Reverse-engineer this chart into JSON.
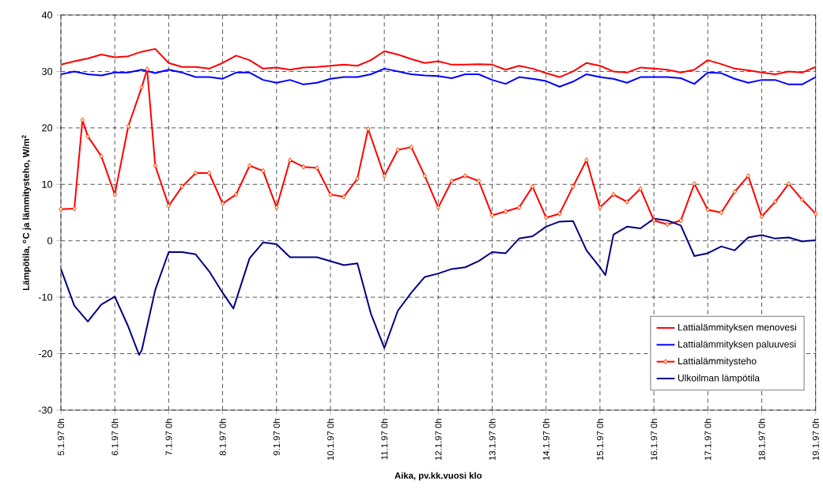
{
  "chart_data": {
    "type": "line",
    "xlabel": "Aika, pv.kk.vuosi klo",
    "ylabel": "Lämpötila, $^{o}$C ja lämmitysteho, W/m$^{2}$",
    "xlim": [
      "1997-01-05T00:00",
      "1997-01-19T00:00"
    ],
    "ylim": [
      -30,
      40
    ],
    "xticks": [
      {
        "value": "1997-01-05T00:00",
        "label": "5.1.97 0h"
      },
      {
        "value": "1997-01-06T00:00",
        "label": "6.1.97 0h"
      },
      {
        "value": "1997-01-07T00:00",
        "label": "7.1.97 0h"
      },
      {
        "value": "1997-01-08T00:00",
        "label": "8.1.97 0h"
      },
      {
        "value": "1997-01-09T00:00",
        "label": "9.1.97 0h"
      },
      {
        "value": "1997-01-10T00:00",
        "label": "10.1.97 0h"
      },
      {
        "value": "1997-01-11T00:00",
        "label": "11.1.97 0h"
      },
      {
        "value": "1997-01-12T00:00",
        "label": "12.1.97 0h"
      },
      {
        "value": "1997-01-13T00:00",
        "label": "13.1.97 0h"
      },
      {
        "value": "1997-01-14T00:00",
        "label": "14.1.97 0h"
      },
      {
        "value": "1997-01-15T00:00",
        "label": "15.1.97 0h"
      },
      {
        "value": "1997-01-16T00:00",
        "label": "16.1.97 0h"
      },
      {
        "value": "1997-01-17T00:00",
        "label": "17.1.97 0h"
      },
      {
        "value": "1997-01-18T00:00",
        "label": "18.1.97 0h"
      },
      {
        "value": "1997-01-19T00:00",
        "label": "19.1.97 0h"
      }
    ],
    "yticks": [
      -30,
      -20,
      -10,
      0,
      10,
      20,
      30,
      40
    ],
    "grid": true,
    "legend": "bottom right",
    "line_style": "solid",
    "x": [
      "1997-01-05T00:00",
      "1997-01-05T06:00",
      "1997-01-05T12:00",
      "1997-01-05T18:00",
      "1997-01-06T00:00",
      "1997-01-06T06:00",
      "1997-01-06T12:00",
      "1997-01-06T18:00",
      "1997-01-07T00:00",
      "1997-01-07T06:00",
      "1997-01-07T12:00",
      "1997-01-07T18:00",
      "1997-01-08T00:00",
      "1997-01-08T06:00",
      "1997-01-08T12:00",
      "1997-01-08T18:00",
      "1997-01-09T00:00",
      "1997-01-09T06:00",
      "1997-01-09T12:00",
      "1997-01-09T18:00",
      "1997-01-10T00:00",
      "1997-01-10T06:00",
      "1997-01-10T12:00",
      "1997-01-10T18:00",
      "1997-01-11T00:00",
      "1997-01-11T06:00",
      "1997-01-11T12:00",
      "1997-01-11T18:00",
      "1997-01-12T00:00",
      "1997-01-12T06:00",
      "1997-01-12T12:00",
      "1997-01-12T18:00",
      "1997-01-13T00:00",
      "1997-01-13T06:00",
      "1997-01-13T12:00",
      "1997-01-13T18:00",
      "1997-01-14T00:00",
      "1997-01-14T06:00",
      "1997-01-14T12:00",
      "1997-01-14T18:00",
      "1997-01-15T00:00",
      "1997-01-15T06:00",
      "1997-01-15T12:00",
      "1997-01-15T18:00",
      "1997-01-16T00:00",
      "1997-01-16T06:00",
      "1997-01-16T12:00",
      "1997-01-16T18:00",
      "1997-01-17T00:00",
      "1997-01-17T06:00",
      "1997-01-17T12:00",
      "1997-01-17T18:00",
      "1997-01-18T00:00",
      "1997-01-18T06:00",
      "1997-01-18T12:00",
      "1997-01-18T18:00",
      "1997-01-19T00:00"
    ],
    "series": [
      {
        "name": "Lattialämmityksen menovesi",
        "color": "#ff0000",
        "marker": "none",
        "values": [
          31.2,
          31.8,
          32.3,
          33.0,
          32.5,
          32.7,
          33.5,
          34.0,
          31.5,
          30.8,
          30.8,
          30.5,
          31.5,
          32.8,
          32.0,
          30.5,
          30.7,
          30.3,
          30.7,
          30.8,
          31.0,
          31.2,
          31.0,
          32.0,
          33.6,
          33.0,
          32.2,
          31.5,
          31.8,
          31.2,
          31.2,
          31.3,
          31.2,
          30.3,
          31.0,
          30.5,
          29.7,
          29.0,
          30.0,
          31.5,
          31.0,
          30.0,
          29.8,
          30.7,
          30.5,
          30.3,
          29.8,
          30.3,
          32.0,
          31.3,
          30.5,
          30.2,
          29.8,
          29.5,
          30.0,
          29.8,
          30.8
        ]
      },
      {
        "name": "Lattialämmityksen paluuvesi",
        "color": "#0000ff",
        "marker": "none",
        "values": [
          29.5,
          30.0,
          29.5,
          29.3,
          29.8,
          29.8,
          30.3,
          29.7,
          30.3,
          29.8,
          29.0,
          29.0,
          28.7,
          29.8,
          29.8,
          28.5,
          28.0,
          28.5,
          27.7,
          28.0,
          28.7,
          29.0,
          29.0,
          29.5,
          30.5,
          30.0,
          29.5,
          29.3,
          29.2,
          28.8,
          29.5,
          29.5,
          28.5,
          27.8,
          29.0,
          28.7,
          28.3,
          27.3,
          28.2,
          29.5,
          29.0,
          28.7,
          28.0,
          29.0,
          29.0,
          29.0,
          28.8,
          27.8,
          29.8,
          29.7,
          28.7,
          28.0,
          28.5,
          28.5,
          27.7,
          27.7,
          29.0
        ]
      },
      {
        "name": "Lattialämmitysteho",
        "color": "#ff0000",
        "marker": "diamond",
        "x": [
          "1997-01-05T00:00",
          "1997-01-05T06:00",
          "1997-01-05T09:36",
          "1997-01-05T12:00",
          "1997-01-05T18:00",
          "1997-01-06T00:00",
          "1997-01-06T06:00",
          "1997-01-06T12:00",
          "1997-01-06T14:24",
          "1997-01-06T18:00",
          "1997-01-07T00:00",
          "1997-01-07T06:00",
          "1997-01-07T12:00",
          "1997-01-07T18:00",
          "1997-01-08T00:00",
          "1997-01-08T06:00",
          "1997-01-08T12:00",
          "1997-01-08T18:00",
          "1997-01-09T00:00",
          "1997-01-09T06:00",
          "1997-01-09T12:00",
          "1997-01-09T18:00",
          "1997-01-10T00:00",
          "1997-01-10T06:00",
          "1997-01-10T12:00",
          "1997-01-10T16:48",
          "1997-01-11T00:00",
          "1997-01-11T06:00",
          "1997-01-11T12:00",
          "1997-01-11T18:00",
          "1997-01-12T00:00",
          "1997-01-12T06:00",
          "1997-01-12T12:00",
          "1997-01-12T18:00",
          "1997-01-13T00:00",
          "1997-01-13T06:00",
          "1997-01-13T12:00",
          "1997-01-13T18:00",
          "1997-01-14T00:00",
          "1997-01-14T06:00",
          "1997-01-14T12:00",
          "1997-01-14T18:00",
          "1997-01-15T00:00",
          "1997-01-15T06:00",
          "1997-01-15T12:00",
          "1997-01-15T18:00",
          "1997-01-16T00:00",
          "1997-01-16T06:00",
          "1997-01-16T12:00",
          "1997-01-16T18:00",
          "1997-01-17T00:00",
          "1997-01-17T06:00",
          "1997-01-17T12:00",
          "1997-01-17T18:00",
          "1997-01-18T00:00",
          "1997-01-18T06:00",
          "1997-01-18T12:00",
          "1997-01-18T18:00",
          "1997-01-19T00:00"
        ],
        "values": [
          5.6,
          5.7,
          21.4,
          18.5,
          15.0,
          8.2,
          20.3,
          27.2,
          30.4,
          13.3,
          6.2,
          9.6,
          12.0,
          12.0,
          6.6,
          8.2,
          13.3,
          12.4,
          5.9,
          14.3,
          13.1,
          12.9,
          8.2,
          7.8,
          11.0,
          19.8,
          11.5,
          16.1,
          16.6,
          11.5,
          5.9,
          10.6,
          11.5,
          10.6,
          4.5,
          5.2,
          5.9,
          9.6,
          4.1,
          4.8,
          9.6,
          14.3,
          5.9,
          8.2,
          6.9,
          9.2,
          3.6,
          2.9,
          3.6,
          10.1,
          5.5,
          5.0,
          8.7,
          11.5,
          4.3,
          6.9,
          10.1,
          7.3,
          4.8
        ]
      },
      {
        "name": "Ulkoilman lämpötila",
        "color": "#000080",
        "marker": "none",
        "x": [
          "1997-01-05T00:00",
          "1997-01-05T06:00",
          "1997-01-05T12:00",
          "1997-01-05T18:00",
          "1997-01-06T00:00",
          "1997-01-06T06:00",
          "1997-01-06T10:48",
          "1997-01-06T12:00",
          "1997-01-06T18:00",
          "1997-01-07T00:00",
          "1997-01-07T06:00",
          "1997-01-07T12:00",
          "1997-01-07T18:00",
          "1997-01-08T00:00",
          "1997-01-08T04:48",
          "1997-01-08T12:00",
          "1997-01-08T18:00",
          "1997-01-09T00:00",
          "1997-01-09T06:00",
          "1997-01-09T12:00",
          "1997-01-09T18:00",
          "1997-01-10T00:00",
          "1997-01-10T06:00",
          "1997-01-10T12:00",
          "1997-01-10T18:00",
          "1997-01-11T00:00",
          "1997-01-11T06:00",
          "1997-01-11T12:00",
          "1997-01-11T18:00",
          "1997-01-12T00:00",
          "1997-01-12T06:00",
          "1997-01-12T12:00",
          "1997-01-12T18:00",
          "1997-01-13T00:00",
          "1997-01-13T06:00",
          "1997-01-13T12:00",
          "1997-01-13T18:00",
          "1997-01-14T00:00",
          "1997-01-14T06:00",
          "1997-01-14T12:00",
          "1997-01-14T18:00",
          "1997-01-15T00:00",
          "1997-01-15T02:24",
          "1997-01-15T06:00",
          "1997-01-15T12:00",
          "1997-01-15T18:00",
          "1997-01-16T00:00",
          "1997-01-16T06:00",
          "1997-01-16T12:00",
          "1997-01-16T18:00",
          "1997-01-17T00:00",
          "1997-01-17T06:00",
          "1997-01-17T12:00",
          "1997-01-17T18:00",
          "1997-01-18T00:00",
          "1997-01-18T06:00",
          "1997-01-18T12:00",
          "1997-01-18T18:00",
          "1997-01-19T00:00"
        ],
        "values": [
          -5.0,
          -11.5,
          -14.3,
          -11.3,
          -9.9,
          -15.2,
          -20.2,
          -19.4,
          -8.7,
          -2.0,
          -2.0,
          -2.4,
          -5.4,
          -9.2,
          -12.0,
          -3.1,
          -0.3,
          -0.6,
          -2.9,
          -2.9,
          -2.9,
          -3.6,
          -4.3,
          -4.0,
          -12.9,
          -19.0,
          -12.4,
          -9.2,
          -6.4,
          -5.8,
          -5.0,
          -4.7,
          -3.6,
          -2.0,
          -2.2,
          0.4,
          0.8,
          2.5,
          3.4,
          3.5,
          -1.7,
          -4.7,
          -6.1,
          1.1,
          2.5,
          2.2,
          3.9,
          3.6,
          2.7,
          -2.7,
          -2.2,
          -1.0,
          -1.7,
          0.6,
          1.0,
          0.4,
          0.6,
          -0.1,
          0.1
        ]
      }
    ]
  }
}
